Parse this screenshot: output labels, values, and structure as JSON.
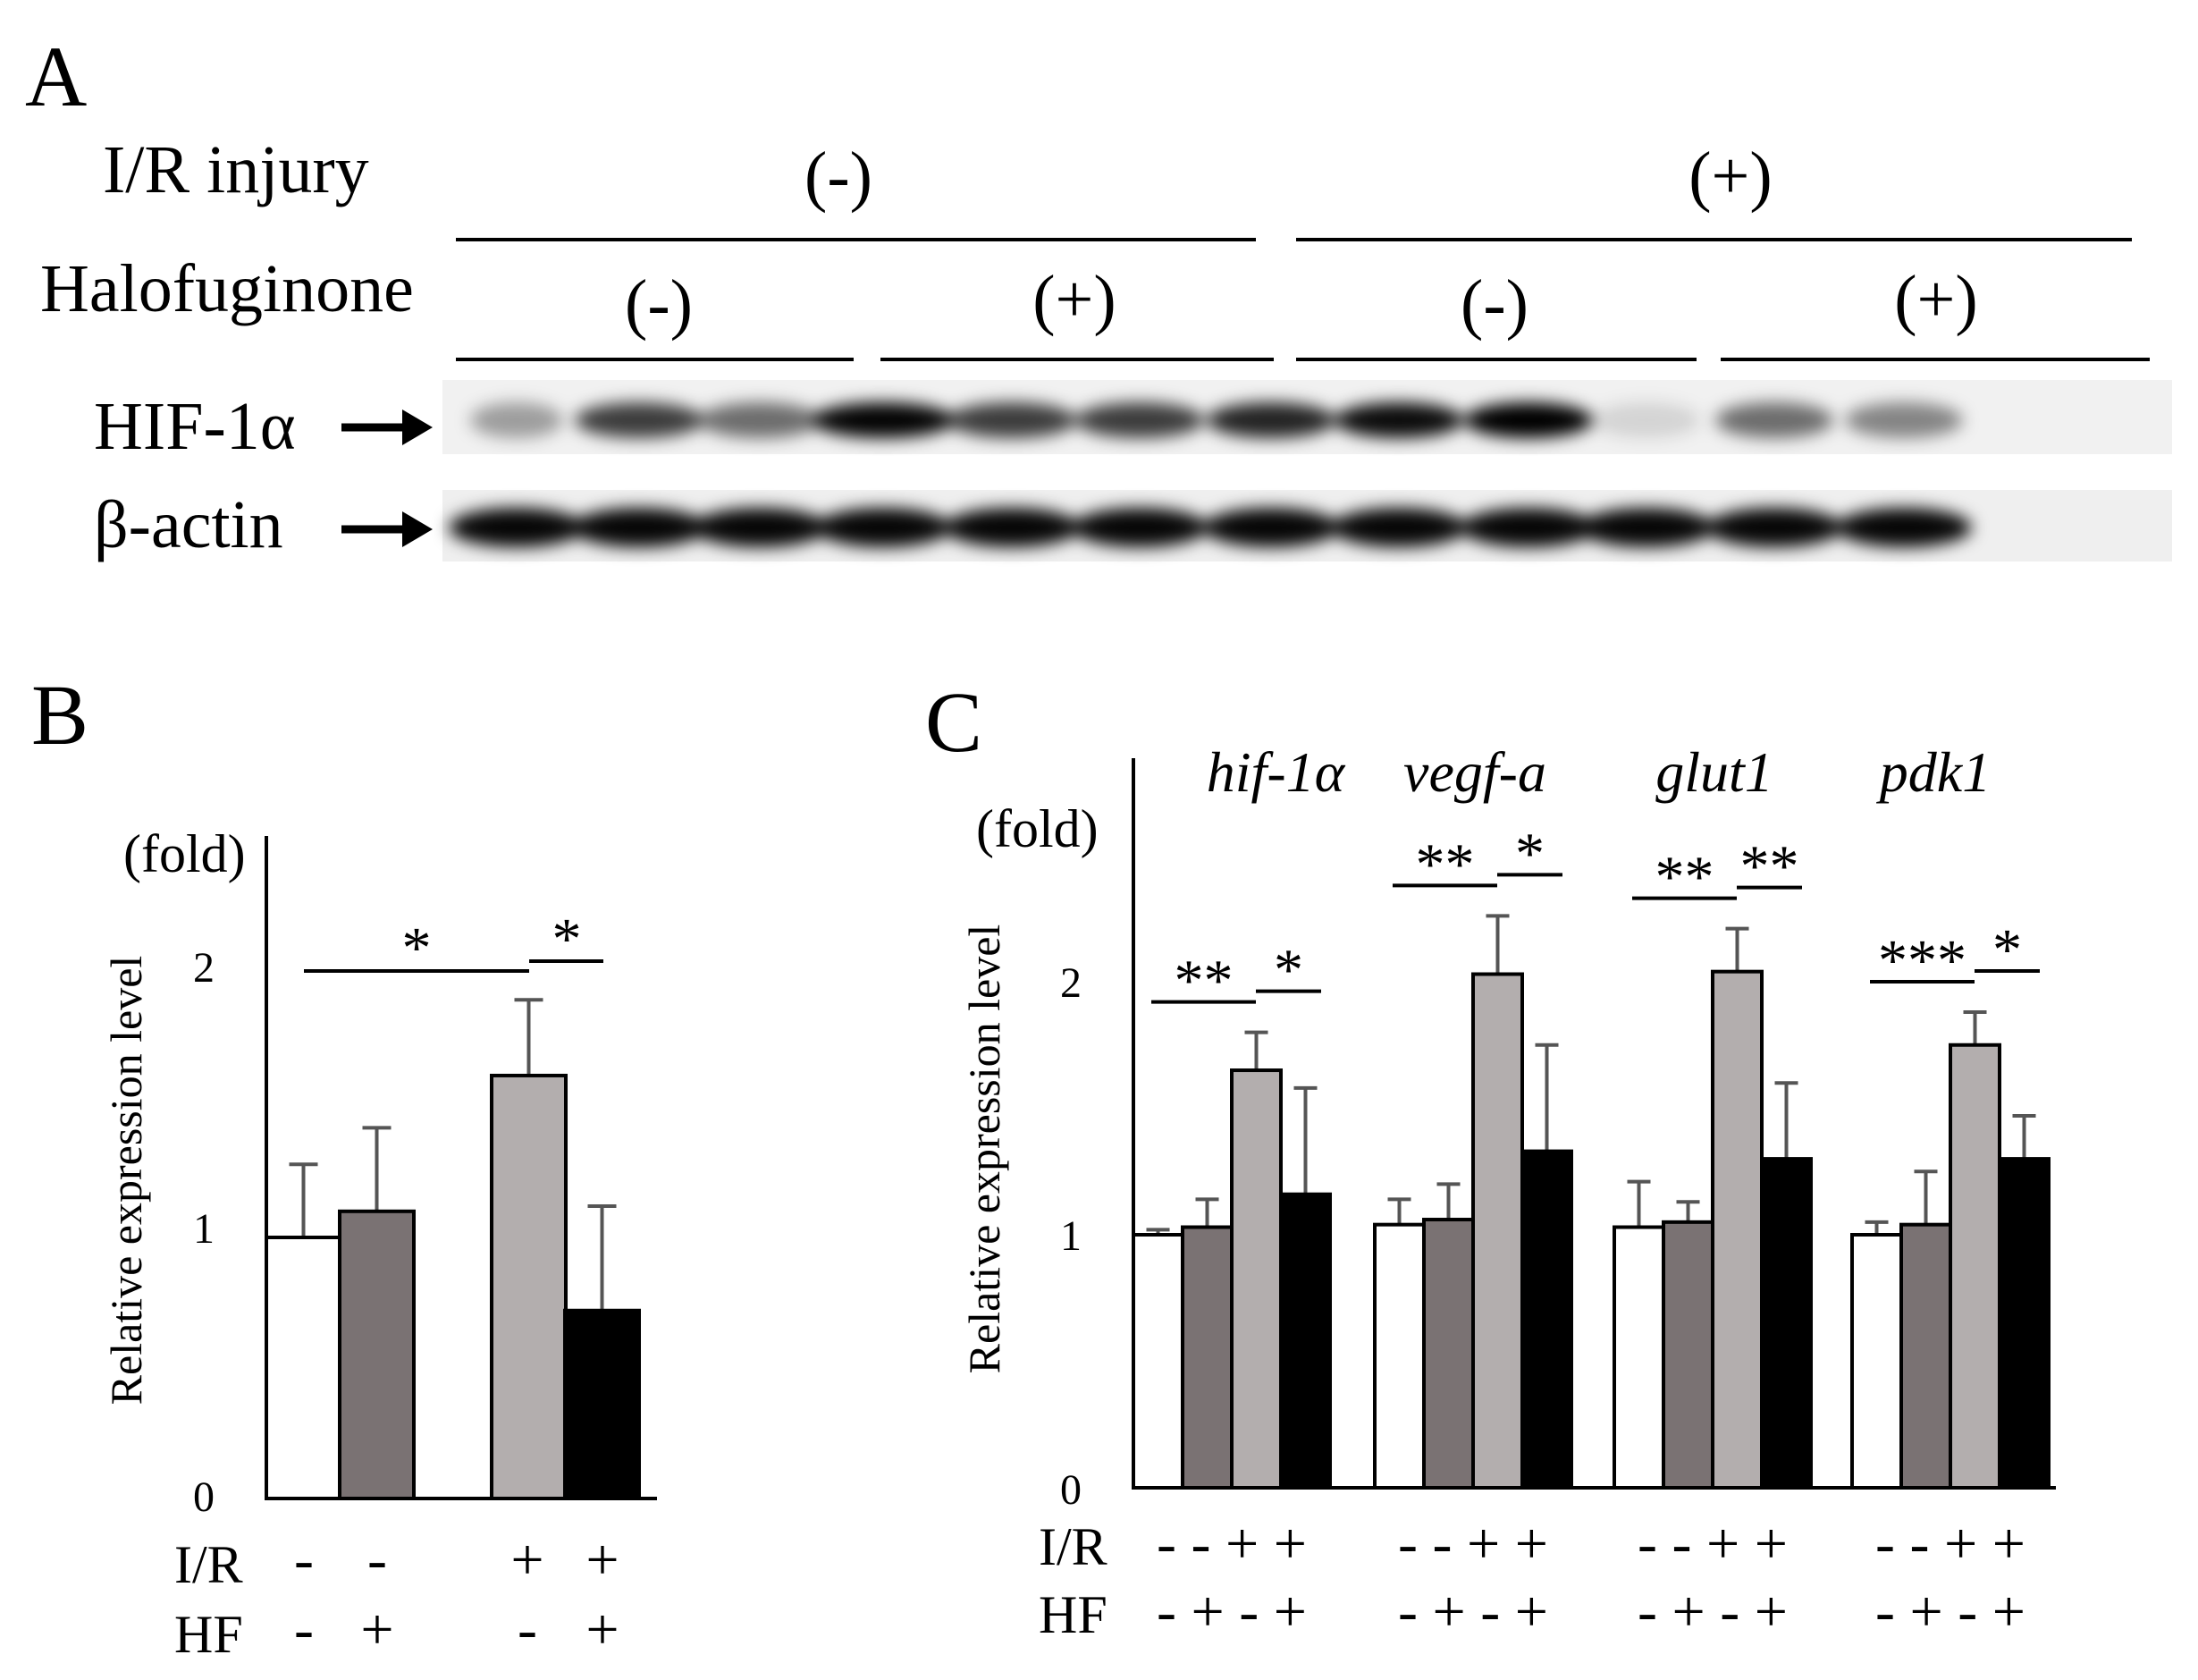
{
  "panelA": {
    "letter": "A",
    "ir_label": "I/R injury",
    "hf_label": "Halofuginone",
    "ir_groups": [
      "(-)",
      "(+)"
    ],
    "hf_groups": [
      "(-)",
      "(+)",
      "(-)",
      "(+)"
    ],
    "band_hif": "HIF-1α",
    "band_actin": "β-actin"
  },
  "panelB": {
    "letter": "B",
    "fold": "(fold)",
    "ylabel": "Relative expression level",
    "yticks": [
      "0",
      "1",
      "2"
    ],
    "row_ir": "I/R",
    "row_hf": "HF",
    "ir_signs": [
      "-",
      "-",
      "+",
      "+"
    ],
    "hf_signs": [
      "-",
      "+",
      "-",
      "+"
    ],
    "sig_left": "*",
    "sig_right": "*"
  },
  "panelC": {
    "letter": "C",
    "fold": "(fold)",
    "ylabel": "Relative expression level",
    "yticks": [
      "0",
      "1",
      "2"
    ],
    "row_ir": "I/R",
    "row_hf": "HF",
    "groups": [
      {
        "gene": "hif-1α",
        "ir": "- - + +",
        "hf": "- + - +",
        "sig_left": "**",
        "sig_right": "*"
      },
      {
        "gene": "vegf-a",
        "ir": "- - + +",
        "hf": "- + - +",
        "sig_left": "**",
        "sig_right": "*"
      },
      {
        "gene": "glut1",
        "ir": "- - + +",
        "hf": "- + - +",
        "sig_left": "**",
        "sig_right": "**"
      },
      {
        "gene": "pdk1",
        "ir": "- - + +",
        "hf": "- + - +",
        "sig_left": "***",
        "sig_right": "*"
      }
    ]
  },
  "colors": {
    "bar1": "#ffffff",
    "bar2": "#7a7273",
    "bar3": "#b3aeae",
    "bar4": "#000000",
    "error": "#555555"
  },
  "chart_data": [
    {
      "type": "bar",
      "panel": "B",
      "categories": [
        "I/R - HF -",
        "I/R - HF +",
        "I/R + HF -",
        "I/R + HF +"
      ],
      "values": [
        1.0,
        1.1,
        1.62,
        0.72
      ],
      "errors": [
        0.28,
        0.32,
        0.29,
        0.4
      ],
      "ylabel": "Relative expression level",
      "ylim": [
        0,
        2.5
      ],
      "significance": [
        {
          "from": 0,
          "to": 2,
          "label": "*"
        },
        {
          "from": 2,
          "to": 3,
          "label": "*"
        }
      ]
    },
    {
      "type": "bar",
      "panel": "C",
      "categories": [
        "hif-1α",
        "vegf-a",
        "glut1",
        "pdk1"
      ],
      "series": [
        {
          "condition": "I/R - HF -",
          "values": [
            1.0,
            1.04,
            1.03,
            1.0
          ],
          "errors": [
            0.02,
            0.1,
            0.18,
            0.05
          ]
        },
        {
          "condition": "I/R - HF +",
          "values": [
            1.03,
            1.06,
            1.05,
            1.04
          ],
          "errors": [
            0.11,
            0.14,
            0.08,
            0.21
          ]
        },
        {
          "condition": "I/R + HF -",
          "values": [
            1.65,
            2.03,
            2.04,
            1.75
          ],
          "errors": [
            0.15,
            0.23,
            0.17,
            0.13
          ]
        },
        {
          "condition": "I/R + HF +",
          "values": [
            1.16,
            1.33,
            1.3,
            1.3
          ],
          "errors": [
            0.42,
            0.42,
            0.3,
            0.17
          ]
        }
      ],
      "ylabel": "Relative expression level",
      "ylim": [
        0,
        2.5
      ],
      "significance": [
        {
          "category": 0,
          "pairs": [
            [
              "I/R - HF -",
              "I/R + HF -",
              "**"
            ],
            [
              "I/R + HF -",
              "I/R + HF +",
              "*"
            ]
          ]
        },
        {
          "category": 1,
          "pairs": [
            [
              "I/R - HF -",
              "I/R + HF -",
              "**"
            ],
            [
              "I/R + HF -",
              "I/R + HF +",
              "*"
            ]
          ]
        },
        {
          "category": 2,
          "pairs": [
            [
              "I/R - HF -",
              "I/R + HF -",
              "**"
            ],
            [
              "I/R + HF -",
              "I/R + HF +",
              "**"
            ]
          ]
        },
        {
          "category": 3,
          "pairs": [
            [
              "I/R - HF -",
              "I/R + HF -",
              "***"
            ],
            [
              "I/R + HF -",
              "I/R + HF +",
              "*"
            ]
          ]
        }
      ]
    }
  ]
}
